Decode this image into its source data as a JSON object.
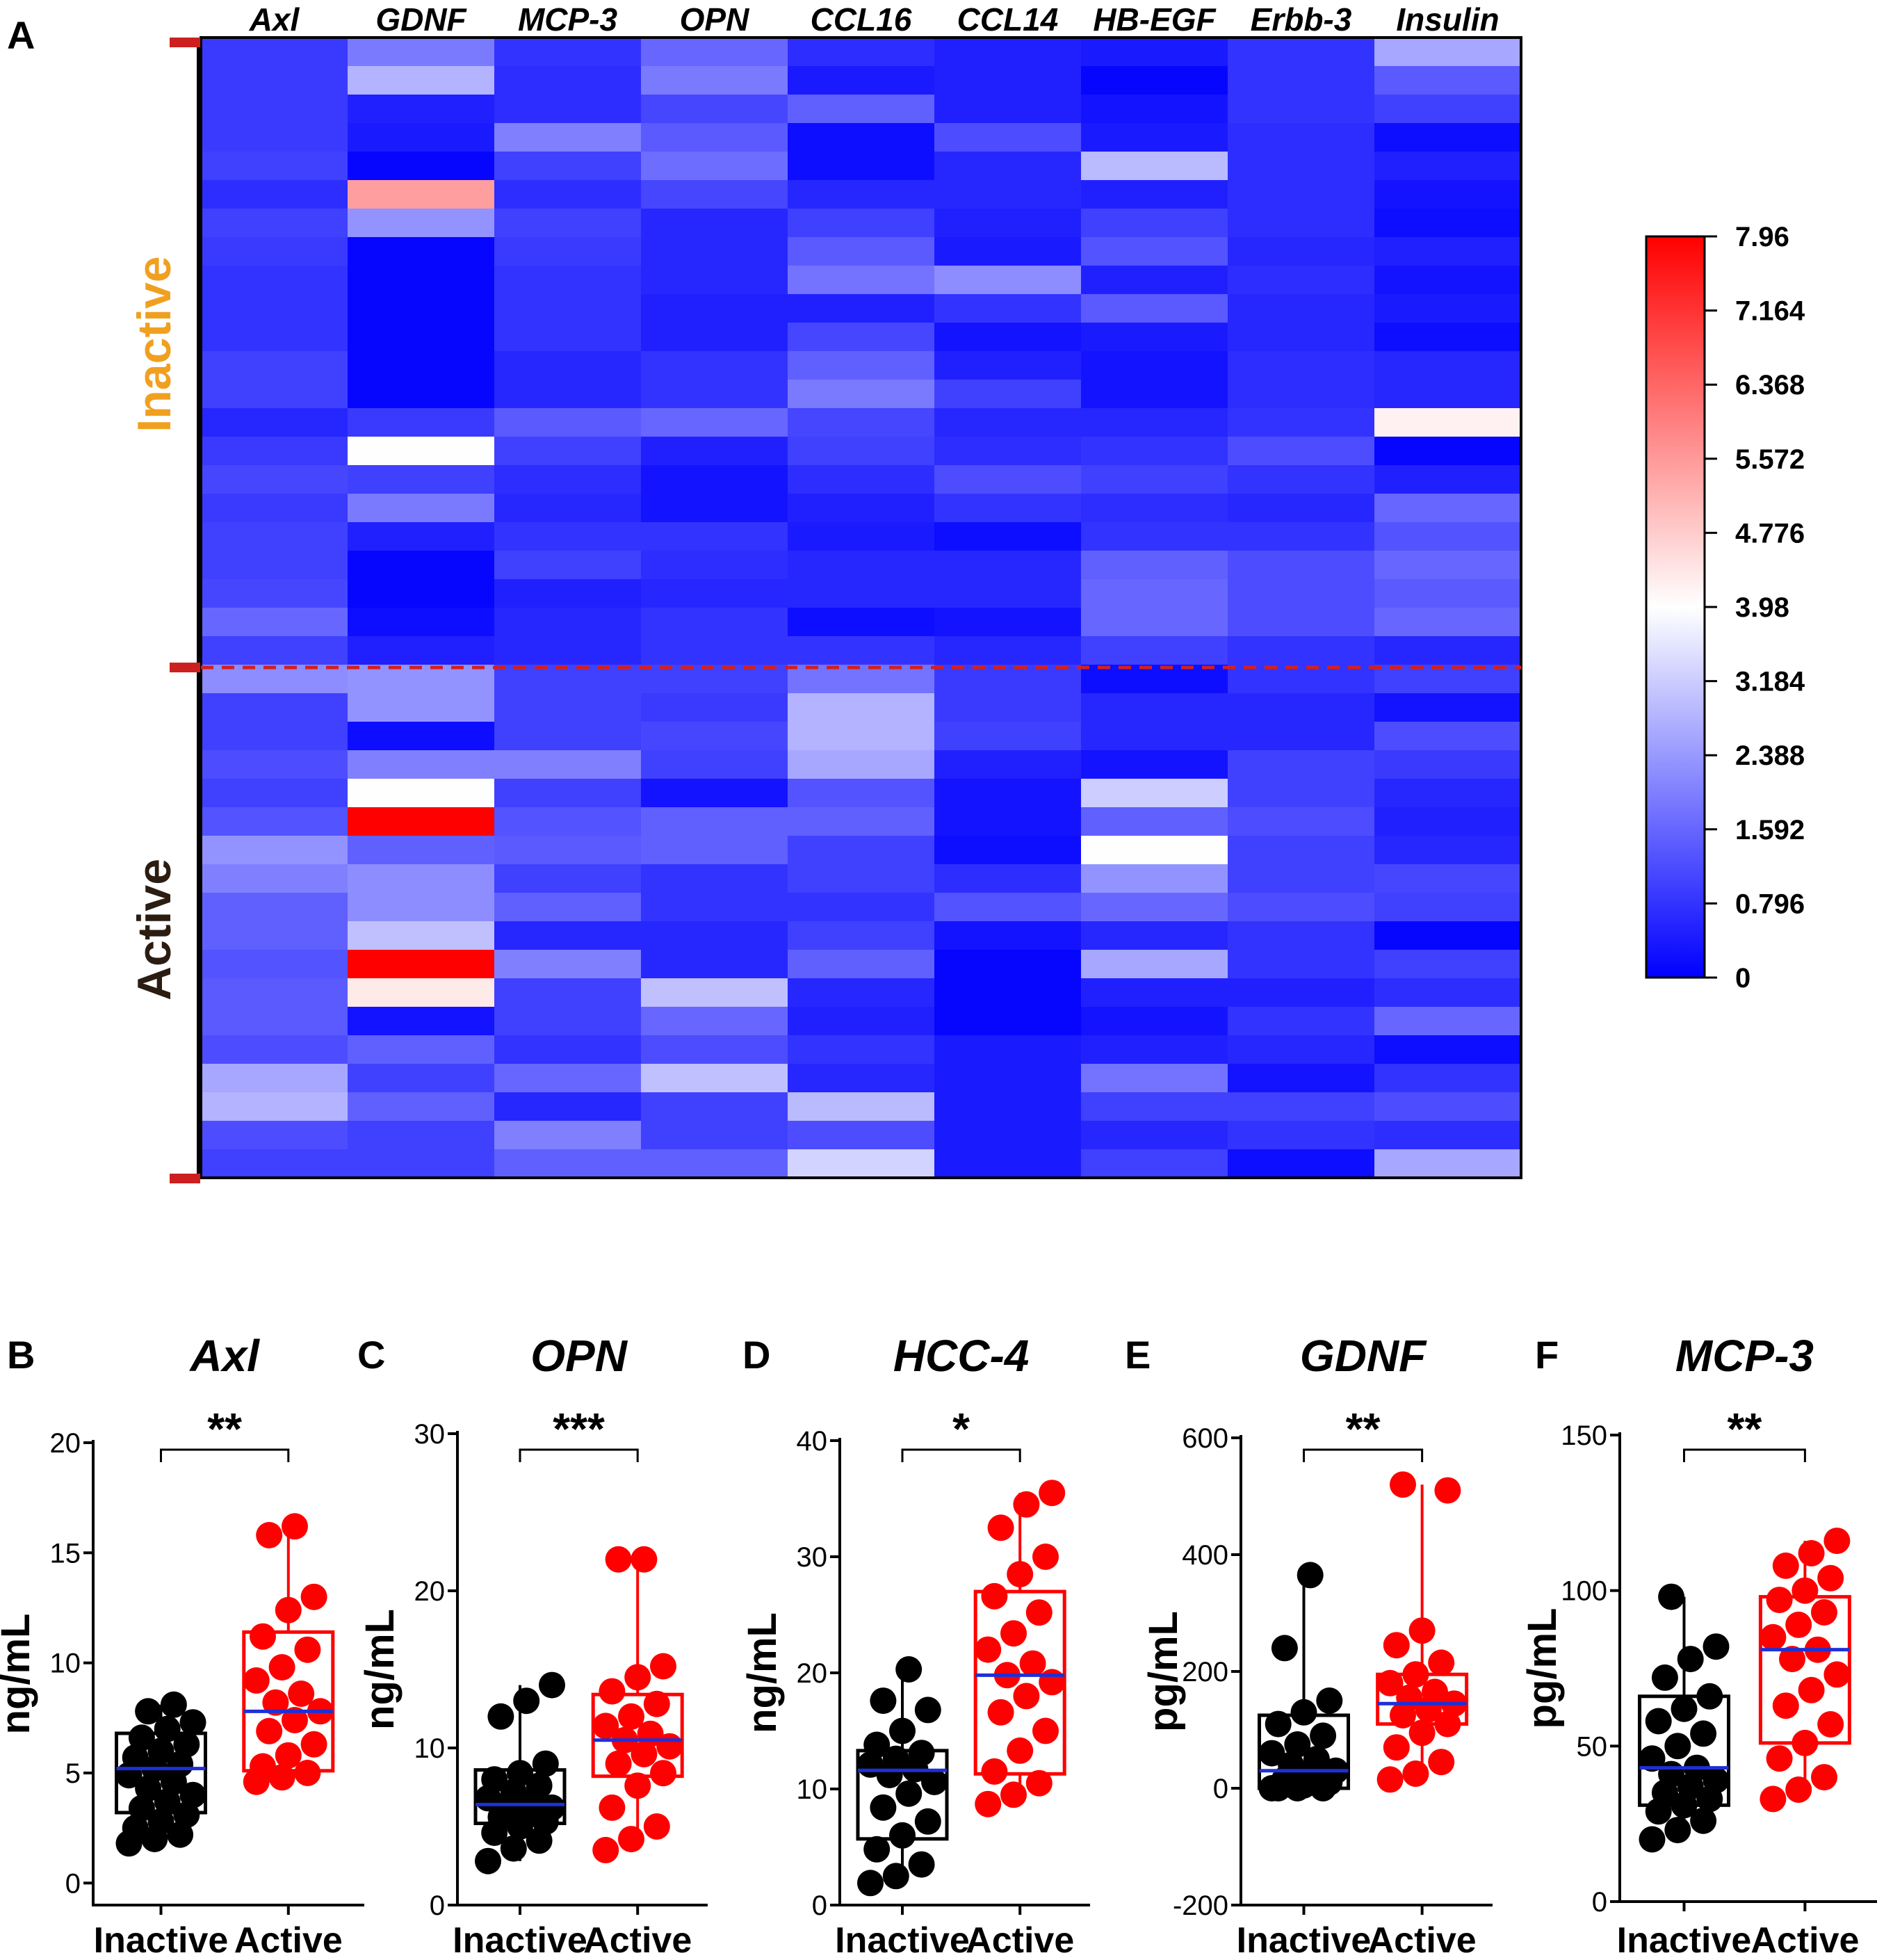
{
  "figure": {
    "panel_a_label": "A",
    "heatmap": {
      "columns": [
        "Axl",
        "GDNF",
        "MCP-3",
        "OPN",
        "CCL16",
        "CCL14",
        "HB-EGF",
        "Erbb-3",
        "Insulin"
      ],
      "groups": [
        {
          "label": "Inactive",
          "color": "#f0a020"
        },
        {
          "label": "Active",
          "color": "#2b1d12"
        }
      ],
      "colorbar": {
        "min": 0,
        "max": 7.96,
        "ticks": [
          "7.96",
          "7.164",
          "6.368",
          "5.572",
          "4.776",
          "3.98",
          "3.184",
          "2.388",
          "1.592",
          "0.796",
          "0"
        ],
        "low_color": "#0000ff",
        "mid_color": "#ffffff",
        "high_color": "#ff0000"
      }
    }
  },
  "chart_data": [
    {
      "type": "heatmap",
      "x": [
        "Axl",
        "GDNF",
        "MCP-3",
        "OPN",
        "CCL16",
        "CCL14",
        "HB-EGF",
        "Erbb-3",
        "Insulin"
      ],
      "row_groups": [
        {
          "name": "Inactive",
          "rows": 22
        },
        {
          "name": "Active",
          "rows": 18
        }
      ],
      "zlim": [
        0,
        7.96
      ],
      "values": [
        [
          0.9,
          1.9,
          0.8,
          1.6,
          0.7,
          0.5,
          0.4,
          0.8,
          2.6
        ],
        [
          0.9,
          2.8,
          0.7,
          1.9,
          0.4,
          0.5,
          0.1,
          0.8,
          1.4
        ],
        [
          0.9,
          0.5,
          0.7,
          1.1,
          1.5,
          0.5,
          0.3,
          0.8,
          1.0
        ],
        [
          0.9,
          0.4,
          2.0,
          1.4,
          0.2,
          1.2,
          0.4,
          0.7,
          0.2
        ],
        [
          1.0,
          0.1,
          1.0,
          1.7,
          0.2,
          0.6,
          2.9,
          0.7,
          0.5
        ],
        [
          0.7,
          5.5,
          0.7,
          1.1,
          0.6,
          0.6,
          0.5,
          0.7,
          0.3
        ],
        [
          1.0,
          2.3,
          1.0,
          0.6,
          1.0,
          0.5,
          1.0,
          0.7,
          0.2
        ],
        [
          0.9,
          0.1,
          0.9,
          0.6,
          1.4,
          0.4,
          1.3,
          0.6,
          0.5
        ],
        [
          0.8,
          0.1,
          0.8,
          0.6,
          1.8,
          2.2,
          0.5,
          0.7,
          0.3
        ],
        [
          0.8,
          0.1,
          0.8,
          0.5,
          0.5,
          0.8,
          1.4,
          0.6,
          0.4
        ],
        [
          0.8,
          0.1,
          0.8,
          0.5,
          1.1,
          0.3,
          0.4,
          0.6,
          0.2
        ],
        [
          1.0,
          0.1,
          0.6,
          0.8,
          1.5,
          0.5,
          0.3,
          0.7,
          0.6
        ],
        [
          1.0,
          0.1,
          0.6,
          0.8,
          1.9,
          1.0,
          0.3,
          0.7,
          0.6
        ],
        [
          0.6,
          0.9,
          1.4,
          1.6,
          1.1,
          0.6,
          0.6,
          0.8,
          4.2
        ],
        [
          0.9,
          4.0,
          1.0,
          0.5,
          1.0,
          0.7,
          0.8,
          1.2,
          0.1
        ],
        [
          1.1,
          1.0,
          0.7,
          0.3,
          0.7,
          1.2,
          1.0,
          0.8,
          0.5
        ],
        [
          0.9,
          1.9,
          0.6,
          0.3,
          0.5,
          0.8,
          0.7,
          0.6,
          1.6
        ],
        [
          1.0,
          0.5,
          0.8,
          0.8,
          0.4,
          0.2,
          0.8,
          0.8,
          1.3
        ],
        [
          1.0,
          0.1,
          1.0,
          0.7,
          0.6,
          0.6,
          1.5,
          1.2,
          1.6
        ],
        [
          1.1,
          0.1,
          0.5,
          0.6,
          0.6,
          0.6,
          1.6,
          1.2,
          1.4
        ],
        [
          1.6,
          0.2,
          0.6,
          0.8,
          0.2,
          0.3,
          1.6,
          1.2,
          1.6
        ],
        [
          1.0,
          0.5,
          0.6,
          0.8,
          0.8,
          0.6,
          1.0,
          0.8,
          0.6
        ],
        [
          2.2,
          2.3,
          1.0,
          1.0,
          1.8,
          0.9,
          0.2,
          0.8,
          1.0
        ],
        [
          1.0,
          2.3,
          1.0,
          0.9,
          2.8,
          0.9,
          0.6,
          0.6,
          0.3
        ],
        [
          1.0,
          0.2,
          1.0,
          1.1,
          2.8,
          1.0,
          0.6,
          0.6,
          1.2
        ],
        [
          1.2,
          2.0,
          2.0,
          1.0,
          2.6,
          0.5,
          0.3,
          1.0,
          0.9
        ],
        [
          1.0,
          4.0,
          1.0,
          0.3,
          1.3,
          0.3,
          3.2,
          1.0,
          0.6
        ],
        [
          1.3,
          7.96,
          1.3,
          1.5,
          1.5,
          0.3,
          1.5,
          1.2,
          0.5
        ],
        [
          2.3,
          1.5,
          1.4,
          1.5,
          1.0,
          0.2,
          4.0,
          1.0,
          0.6
        ],
        [
          2.0,
          2.2,
          1.0,
          0.8,
          1.0,
          0.7,
          2.3,
          1.0,
          1.1
        ],
        [
          1.5,
          2.2,
          1.5,
          0.8,
          0.8,
          1.3,
          1.6,
          1.2,
          1.0
        ],
        [
          1.5,
          3.0,
          0.6,
          0.6,
          1.0,
          0.3,
          0.6,
          0.8,
          0.1
        ],
        [
          1.3,
          7.96,
          2.0,
          0.6,
          1.5,
          0.1,
          2.6,
          0.8,
          1.0
        ],
        [
          1.4,
          4.3,
          1.0,
          3.0,
          0.6,
          0.1,
          0.5,
          0.5,
          0.7
        ],
        [
          1.4,
          0.3,
          1.0,
          1.6,
          0.5,
          0.1,
          0.3,
          0.8,
          1.6
        ],
        [
          1.2,
          1.5,
          0.8,
          1.2,
          0.8,
          0.4,
          0.5,
          0.6,
          0.2
        ],
        [
          2.6,
          1.0,
          1.6,
          3.0,
          0.6,
          0.4,
          1.8,
          0.3,
          0.8
        ],
        [
          2.8,
          1.5,
          0.6,
          1.0,
          2.9,
          0.4,
          1.0,
          1.0,
          1.2
        ],
        [
          1.2,
          1.0,
          2.0,
          1.0,
          1.2,
          0.4,
          0.6,
          0.8,
          0.7
        ],
        [
          1.0,
          1.0,
          1.5,
          1.5,
          3.3,
          0.4,
          1.0,
          0.2,
          2.6
        ]
      ]
    },
    {
      "type": "scatter",
      "panel": "B",
      "title": "Axl",
      "ylabel": "ng/mL",
      "ylim": [
        -1,
        20
      ],
      "yticks": [
        "0",
        "5",
        "10",
        "15",
        "20"
      ],
      "categories": [
        "Inactive",
        "Active"
      ],
      "significance": "**",
      "series": [
        {
          "name": "Inactive",
          "color": "#000000",
          "box": {
            "q1": 3.2,
            "median": 5.2,
            "q3": 6.8,
            "min": 1.8,
            "max": 8.1
          },
          "values": [
            1.8,
            2.0,
            2.2,
            2.5,
            2.8,
            3.1,
            3.4,
            3.7,
            4.0,
            4.3,
            4.6,
            4.9,
            5.2,
            5.4,
            5.7,
            6.0,
            6.3,
            6.6,
            7.0,
            7.3,
            7.8,
            8.1
          ]
        },
        {
          "name": "Active",
          "color": "#ff0000",
          "box": {
            "q1": 5.1,
            "median": 7.8,
            "q3": 11.4,
            "min": 4.6,
            "max": 16.2
          },
          "values": [
            4.6,
            4.8,
            5.0,
            5.3,
            5.8,
            6.3,
            6.9,
            7.4,
            7.8,
            8.2,
            8.6,
            9.2,
            9.8,
            10.6,
            11.2,
            12.4,
            13.0,
            15.8,
            16.2
          ]
        }
      ]
    },
    {
      "type": "scatter",
      "panel": "C",
      "title": "OPN",
      "ylabel": "ng/mL",
      "ylim": [
        0,
        30
      ],
      "yticks": [
        "0",
        "10",
        "20",
        "30"
      ],
      "categories": [
        "Inactive",
        "Active"
      ],
      "significance": "***",
      "series": [
        {
          "name": "Inactive",
          "color": "#000000",
          "box": {
            "q1": 5.2,
            "median": 6.4,
            "q3": 8.6,
            "min": 2.8,
            "max": 14.0
          },
          "values": [
            2.8,
            3.6,
            4.1,
            4.6,
            5.0,
            5.3,
            5.6,
            5.9,
            6.2,
            6.4,
            6.6,
            6.8,
            7.2,
            7.6,
            8.0,
            8.4,
            9.0,
            12.0,
            13.0,
            14.0
          ]
        },
        {
          "name": "Active",
          "color": "#ff0000",
          "box": {
            "q1": 8.2,
            "median": 10.5,
            "q3": 13.4,
            "min": 3.5,
            "max": 22.0
          },
          "values": [
            3.5,
            4.2,
            5.0,
            6.2,
            7.6,
            8.4,
            9.0,
            9.6,
            10.1,
            10.5,
            10.9,
            11.4,
            12.0,
            12.8,
            13.6,
            14.5,
            15.2,
            22.0,
            22.0
          ]
        }
      ]
    },
    {
      "type": "scatter",
      "panel": "D",
      "title": "HCC-4",
      "ylabel": "ng/mL",
      "ylim": [
        0,
        40
      ],
      "yticks": [
        "0",
        "10",
        "20",
        "30",
        "40"
      ],
      "categories": [
        "Inactive",
        "Active"
      ],
      "significance": "*",
      "series": [
        {
          "name": "Inactive",
          "color": "#000000",
          "box": {
            "q1": 5.7,
            "median": 11.6,
            "q3": 13.3,
            "min": 1.9,
            "max": 20.3
          },
          "values": [
            1.9,
            2.5,
            3.5,
            4.8,
            6.0,
            7.2,
            8.4,
            9.6,
            10.6,
            11.2,
            11.7,
            12.1,
            12.6,
            13.1,
            13.8,
            15.0,
            16.8,
            17.6,
            20.3
          ]
        },
        {
          "name": "Active",
          "color": "#ff0000",
          "box": {
            "q1": 11.3,
            "median": 19.8,
            "q3": 27.0,
            "min": 8.7,
            "max": 35.5
          },
          "values": [
            8.7,
            9.5,
            10.5,
            11.5,
            13.3,
            15.0,
            16.6,
            18.0,
            19.2,
            19.8,
            20.8,
            22.0,
            23.4,
            25.2,
            26.6,
            28.5,
            30.0,
            32.5,
            34.5,
            35.5
          ]
        }
      ]
    },
    {
      "type": "scatter",
      "panel": "E",
      "title": "GDNF",
      "ylabel": "pg/mL",
      "ylim": [
        -200,
        600
      ],
      "yticks": [
        "-200",
        "0",
        "200",
        "400",
        "600"
      ],
      "categories": [
        "Inactive",
        "Active"
      ],
      "significance": "**",
      "series": [
        {
          "name": "Inactive",
          "color": "#000000",
          "box": {
            "q1": 0,
            "median": 30,
            "q3": 125,
            "min": 0,
            "max": 365
          },
          "values": [
            0,
            0,
            0,
            0,
            5,
            10,
            15,
            25,
            30,
            40,
            50,
            60,
            75,
            90,
            110,
            130,
            150,
            240,
            365
          ]
        },
        {
          "name": "Active",
          "color": "#ff0000",
          "box": {
            "q1": 110,
            "median": 145,
            "q3": 195,
            "min": 15,
            "max": 520
          },
          "values": [
            15,
            25,
            45,
            70,
            95,
            110,
            125,
            135,
            145,
            155,
            165,
            180,
            195,
            215,
            245,
            270,
            510,
            520
          ]
        }
      ]
    },
    {
      "type": "scatter",
      "panel": "F",
      "title": "MCP-3",
      "ylabel": "pg/mL",
      "ylim": [
        0,
        150
      ],
      "yticks": [
        "0",
        "50",
        "100",
        "150"
      ],
      "categories": [
        "Inactive",
        "Active"
      ],
      "significance": "**",
      "series": [
        {
          "name": "Inactive",
          "color": "#000000",
          "box": {
            "q1": 31,
            "median": 43,
            "q3": 66,
            "min": 20,
            "max": 98
          },
          "values": [
            20,
            23,
            26,
            29,
            31,
            33,
            35,
            37,
            39,
            41,
            43,
            46,
            50,
            54,
            58,
            62,
            66,
            72,
            78,
            82,
            98
          ]
        },
        {
          "name": "Active",
          "color": "#ff0000",
          "box": {
            "q1": 51,
            "median": 81,
            "q3": 98,
            "min": 33,
            "max": 116
          },
          "values": [
            33,
            36,
            40,
            46,
            51,
            57,
            63,
            68,
            73,
            78,
            81,
            85,
            89,
            93,
            97,
            100,
            104,
            108,
            112,
            116
          ]
        }
      ]
    }
  ]
}
